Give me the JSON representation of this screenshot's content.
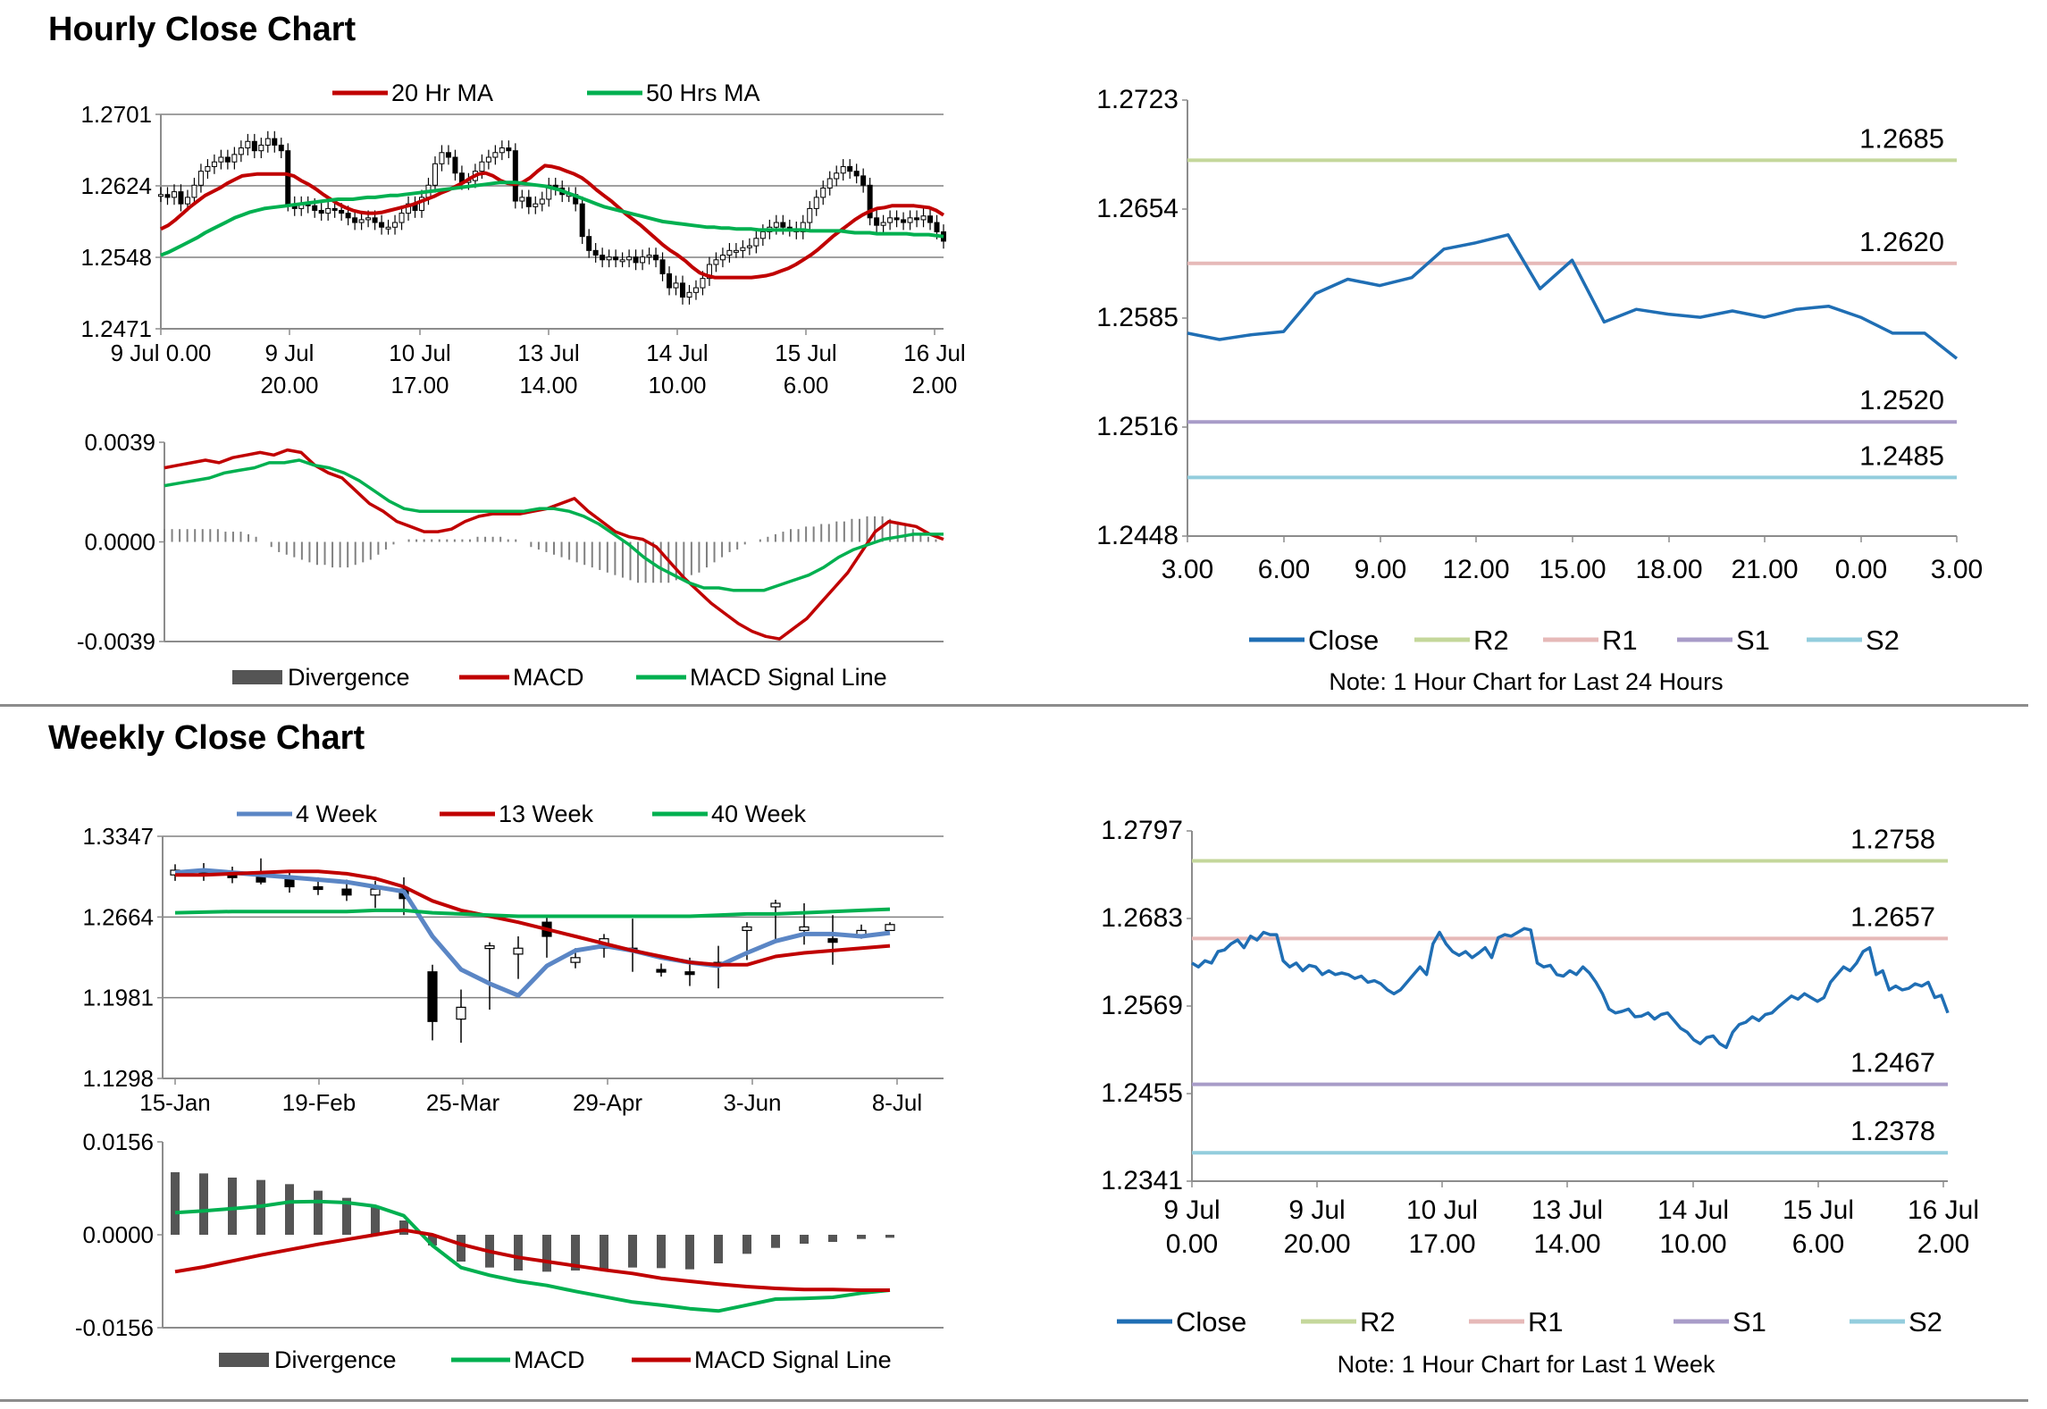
{
  "sections": {
    "hourly_title": "Hourly Close Chart",
    "weekly_title": "Weekly Close Chart"
  },
  "colors": {
    "red": "#c00000",
    "green": "#00b050",
    "blue": "#1f6eb4",
    "steel": "#5b86c5",
    "r2": "#c4d79b",
    "r1": "#e6b9b8",
    "s1": "#a89cc8",
    "s2": "#93cddd",
    "div": "#555555"
  },
  "chart_data": [
    {
      "id": "hourly_price",
      "type": "candlestick",
      "legend": [
        "20 Hr MA",
        "50 Hrs MA"
      ],
      "y_ticks": [
        "1.2701",
        "1.2624",
        "1.2548",
        "1.2471"
      ],
      "ylim": [
        1.2471,
        1.2701
      ],
      "x_ticks": [
        [
          "9 Jul 0.00",
          ""
        ],
        [
          "9 Jul",
          "20.00"
        ],
        [
          "10 Jul",
          "17.00"
        ],
        [
          "13 Jul",
          "14.00"
        ],
        [
          "14 Jul",
          "10.00"
        ],
        [
          "15 Jul",
          "6.00"
        ],
        [
          "16 Jul",
          "2.00"
        ]
      ],
      "close": [
        1.2615,
        1.2612,
        1.2618,
        1.2605,
        1.2612,
        1.2625,
        1.264,
        1.2645,
        1.265,
        1.2655,
        1.265,
        1.2658,
        1.2665,
        1.2672,
        1.2662,
        1.2668,
        1.2675,
        1.2668,
        1.2662,
        1.2605,
        1.26,
        1.2605,
        1.2603,
        1.2598,
        1.2595,
        1.26,
        1.2598,
        1.2595,
        1.259,
        1.2585,
        1.2588,
        1.259,
        1.2585,
        1.258,
        1.258,
        1.2585,
        1.2595,
        1.2605,
        1.2598,
        1.2612,
        1.2625,
        1.2648,
        1.266,
        1.2655,
        1.2638,
        1.2628,
        1.263,
        1.264,
        1.265,
        1.2655,
        1.266,
        1.2665,
        1.2662,
        1.2608,
        1.2612,
        1.2602,
        1.2605,
        1.261,
        1.2625,
        1.2622,
        1.2615,
        1.2615,
        1.2605,
        1.257,
        1.2555,
        1.255,
        1.2545,
        1.2548,
        1.2545,
        1.2545,
        1.2548,
        1.2542,
        1.2548,
        1.255,
        1.2545,
        1.253,
        1.2515,
        1.252,
        1.2505,
        1.251,
        1.2515,
        1.2525,
        1.254,
        1.2545,
        1.255,
        1.2555,
        1.2555,
        1.2558,
        1.256,
        1.2568,
        1.2575,
        1.258,
        1.2585,
        1.258,
        1.2578,
        1.2575,
        1.2585,
        1.26,
        1.2612,
        1.2622,
        1.2632,
        1.2638,
        1.2645,
        1.264,
        1.2635,
        1.2625,
        1.259,
        1.2582,
        1.2585,
        1.259,
        1.2588,
        1.2585,
        1.259,
        1.2588,
        1.2592,
        1.2585,
        1.2575,
        1.2565
      ],
      "ma20": [
        1.2578,
        1.2582,
        1.2588,
        1.2595,
        1.2602,
        1.2608,
        1.2614,
        1.2618,
        1.2622,
        1.2627,
        1.2631,
        1.2635,
        1.2636,
        1.2637,
        1.2637,
        1.2637,
        1.2637,
        1.2637,
        1.2635,
        1.263,
        1.2626,
        1.2621,
        1.2615,
        1.261,
        1.2605,
        1.2601,
        1.2598,
        1.2596,
        1.2595,
        1.2595,
        1.2596,
        1.2598,
        1.26,
        1.2602,
        1.2604,
        1.2607,
        1.261,
        1.2613,
        1.2617,
        1.262,
        1.2624,
        1.2628,
        1.2633,
        1.2637,
        1.2638,
        1.2635,
        1.263,
        1.2627,
        1.2626,
        1.2628,
        1.2633,
        1.264,
        1.2646,
        1.2645,
        1.2643,
        1.264,
        1.2637,
        1.2633,
        1.2627,
        1.262,
        1.2614,
        1.2608,
        1.2601,
        1.2594,
        1.2588,
        1.2582,
        1.2575,
        1.2568,
        1.2561,
        1.2555,
        1.255,
        1.2544,
        1.2537,
        1.2531,
        1.2528,
        1.2526,
        1.2526,
        1.2526,
        1.2526,
        1.2526,
        1.2526,
        1.2527,
        1.2528,
        1.253,
        1.2533,
        1.2536,
        1.254,
        1.2545,
        1.255,
        1.2556,
        1.2563,
        1.257,
        1.2576,
        1.2582,
        1.2588,
        1.2593,
        1.2597,
        1.26,
        1.2601,
        1.2603,
        1.2603,
        1.2603,
        1.2603,
        1.2602,
        1.2601,
        1.2598,
        1.2593
      ],
      "ma50": [
        1.255,
        1.2553,
        1.2557,
        1.2561,
        1.2565,
        1.2569,
        1.2574,
        1.2578,
        1.2582,
        1.2586,
        1.259,
        1.2593,
        1.2596,
        1.2598,
        1.26,
        1.2601,
        1.2602,
        1.2603,
        1.2604,
        1.2605,
        1.2606,
        1.2607,
        1.2608,
        1.2609,
        1.261,
        1.261,
        1.261,
        1.2611,
        1.2612,
        1.2612,
        1.2613,
        1.2614,
        1.2614,
        1.2615,
        1.2616,
        1.2617,
        1.2618,
        1.2619,
        1.262,
        1.2621,
        1.2622,
        1.2623,
        1.2624,
        1.2625,
        1.2626,
        1.2627,
        1.2628,
        1.2628,
        1.2628,
        1.2627,
        1.2626,
        1.2625,
        1.2624,
        1.2622,
        1.262,
        1.2617,
        1.2614,
        1.2611,
        1.2608,
        1.2605,
        1.2602,
        1.26,
        1.2598,
        1.2596,
        1.2594,
        1.2592,
        1.259,
        1.2588,
        1.2586,
        1.2585,
        1.2584,
        1.2583,
        1.2582,
        1.2581,
        1.258,
        1.258,
        1.2579,
        1.2579,
        1.2578,
        1.2578,
        1.2578,
        1.2577,
        1.2577,
        1.2577,
        1.2577,
        1.2577,
        1.2577,
        1.2577,
        1.2576,
        1.2576,
        1.2576,
        1.2576,
        1.2576,
        1.2575,
        1.2574,
        1.2574,
        1.2574,
        1.2573,
        1.2573,
        1.2573,
        1.2573,
        1.2573,
        1.2572,
        1.2572,
        1.2572,
        1.2571,
        1.257
      ]
    },
    {
      "id": "hourly_macd",
      "type": "macd",
      "y_ticks": [
        "0.0039",
        "0.0000",
        "-0.0039"
      ],
      "ylim": [
        -0.0039,
        0.0039
      ],
      "legend": [
        "Divergence",
        "MACD",
        "MACD Signal Line"
      ],
      "macd": [
        0.0029,
        0.003,
        0.0031,
        0.0032,
        0.0031,
        0.0033,
        0.0034,
        0.0035,
        0.0034,
        0.0036,
        0.0035,
        0.003,
        0.0027,
        0.0025,
        0.002,
        0.0015,
        0.0012,
        0.0008,
        0.0006,
        0.0004,
        0.0004,
        0.0005,
        0.0008,
        0.001,
        0.0011,
        0.0011,
        0.0011,
        0.0012,
        0.0013,
        0.0015,
        0.0017,
        0.0012,
        0.0008,
        0.0004,
        0.0002,
        0.0001,
        -0.0002,
        -0.0008,
        -0.0014,
        -0.0019,
        -0.0024,
        -0.0028,
        -0.0032,
        -0.0035,
        -0.0037,
        -0.0038,
        -0.0034,
        -0.003,
        -0.0024,
        -0.0018,
        -0.0012,
        -0.0004,
        0.0004,
        0.0008,
        0.0007,
        0.0006,
        0.0003,
        0.0001
      ],
      "signal": [
        0.0022,
        0.0023,
        0.0024,
        0.0025,
        0.0027,
        0.0028,
        0.0029,
        0.0031,
        0.0031,
        0.0032,
        0.003,
        0.0029,
        0.0027,
        0.0024,
        0.002,
        0.0016,
        0.0013,
        0.0012,
        0.0012,
        0.0012,
        0.0012,
        0.0012,
        0.0012,
        0.0012,
        0.0012,
        0.0013,
        0.0013,
        0.0012,
        0.001,
        0.0007,
        0.0003,
        -0.0001,
        -0.0006,
        -0.001,
        -0.0013,
        -0.0016,
        -0.0018,
        -0.0018,
        -0.0019,
        -0.0019,
        -0.0019,
        -0.0017,
        -0.0015,
        -0.0013,
        -0.001,
        -0.0006,
        -0.0003,
        -0.0001,
        0.0001,
        0.0002,
        0.0003,
        0.0003,
        0.0003
      ],
      "divergence": [
        0.0005,
        0.0005,
        0.0005,
        0.0005,
        0.0005,
        0.0005,
        0.0005,
        0.0005,
        0.0004,
        0.0004,
        0.0004,
        0.0003,
        0.0002,
        0.0,
        -0.0002,
        -0.0004,
        -0.0005,
        -0.0006,
        -0.0007,
        -0.0008,
        -0.0009,
        -0.0009,
        -0.001,
        -0.001,
        -0.001,
        -0.0009,
        -0.0008,
        -0.0007,
        -0.0005,
        -0.0003,
        -0.0001,
        0.0,
        0.0001,
        0.0001,
        0.0001,
        0.0001,
        0.0001,
        0.0001,
        0.0001,
        0.0001,
        0.0001,
        0.0002,
        0.0002,
        0.0002,
        0.0002,
        0.0001,
        0.0001,
        0.0,
        -0.0002,
        -0.0003,
        -0.0004,
        -0.0005,
        -0.0006,
        -0.0007,
        -0.0008,
        -0.0009,
        -0.001,
        -0.0011,
        -0.0012,
        -0.0013,
        -0.0014,
        -0.0015,
        -0.0016,
        -0.0016,
        -0.0016,
        -0.0016,
        -0.0016,
        -0.0015,
        -0.0014,
        -0.0013,
        -0.0012,
        -0.001,
        -0.0008,
        -0.0006,
        -0.0004,
        -0.0003,
        -0.0001,
        0.0,
        0.0001,
        0.0002,
        0.0003,
        0.0004,
        0.0005,
        0.0005,
        0.0006,
        0.0006,
        0.0007,
        0.0007,
        0.0008,
        0.0008,
        0.0009,
        0.0009,
        0.001,
        0.001,
        0.001,
        0.0009,
        0.0008,
        0.0007,
        0.0005,
        0.0003,
        0.0002,
        0.0001,
        0.0
      ]
    },
    {
      "id": "hourly_24h",
      "type": "line",
      "note": "Note: 1 Hour Chart for Last 24 Hours",
      "legend": [
        "Close",
        "R2",
        "R1",
        "S1",
        "S2"
      ],
      "y_ticks": [
        "1.2723",
        "1.2654",
        "1.2585",
        "1.2516",
        "1.2448"
      ],
      "ylim": [
        1.2448,
        1.2723
      ],
      "x_ticks": [
        "3.00",
        "6.00",
        "9.00",
        "12.00",
        "15.00",
        "18.00",
        "21.00",
        "0.00",
        "3.00"
      ],
      "close": [
        1.2576,
        1.2572,
        1.2575,
        1.2577,
        1.2601,
        1.261,
        1.2606,
        1.2611,
        1.2629,
        1.2633,
        1.2638,
        1.2604,
        1.2622,
        1.2583,
        1.2591,
        1.2588,
        1.2586,
        1.259,
        1.2586,
        1.2591,
        1.2593,
        1.2586,
        1.2576,
        1.2576,
        1.256
      ],
      "levels": {
        "R2": "1.2685",
        "R1": "1.2620",
        "S1": "1.2520",
        "S2": "1.2485"
      }
    },
    {
      "id": "weekly_price",
      "type": "candlestick",
      "legend": [
        "4 Week",
        "13 Week",
        "40 Week"
      ],
      "y_ticks": [
        "1.3347",
        "1.2664",
        "1.1981",
        "1.1298"
      ],
      "ylim": [
        1.1298,
        1.3347
      ],
      "x_ticks": [
        "15-Jan",
        "19-Feb",
        "25-Mar",
        "29-Apr",
        "3-Jun",
        "8-Jul"
      ],
      "open": [
        1.302,
        1.306,
        1.302,
        1.3,
        1.298,
        1.292,
        1.29,
        1.285,
        1.29,
        1.22,
        1.18,
        1.24,
        1.235,
        1.262,
        1.228,
        1.24,
        1.24,
        1.222,
        1.22,
        1.225,
        1.255,
        1.275,
        1.255,
        1.248,
        1.25,
        1.255
      ],
      "close": [
        1.306,
        1.302,
        1.3,
        1.296,
        1.292,
        1.29,
        1.285,
        1.29,
        1.282,
        1.178,
        1.19,
        1.242,
        1.24,
        1.25,
        1.232,
        1.248,
        1.238,
        1.22,
        1.218,
        1.228,
        1.258,
        1.278,
        1.258,
        1.245,
        1.255,
        1.26
      ],
      "high": [
        1.311,
        1.312,
        1.309,
        1.316,
        1.305,
        1.3,
        1.298,
        1.297,
        1.3,
        1.226,
        1.205,
        1.245,
        1.25,
        1.267,
        1.24,
        1.252,
        1.265,
        1.227,
        1.232,
        1.242,
        1.262,
        1.281,
        1.278,
        1.268,
        1.26,
        1.262
      ],
      "low": [
        1.297,
        1.297,
        1.295,
        1.294,
        1.287,
        1.285,
        1.28,
        1.274,
        1.268,
        1.162,
        1.16,
        1.188,
        1.214,
        1.232,
        1.223,
        1.232,
        1.22,
        1.216,
        1.208,
        1.206,
        1.23,
        1.245,
        1.243,
        1.226,
        1.248,
        1.255
      ],
      "w4": [
        1.304,
        1.306,
        1.304,
        1.302,
        1.3,
        1.298,
        1.296,
        1.292,
        1.288,
        1.25,
        1.222,
        1.21,
        1.2,
        1.225,
        1.238,
        1.242,
        1.238,
        1.232,
        1.228,
        1.225,
        1.236,
        1.246,
        1.252,
        1.252,
        1.25,
        1.253
      ],
      "w13": [
        1.302,
        1.302,
        1.303,
        1.304,
        1.305,
        1.305,
        1.303,
        1.299,
        1.292,
        1.28,
        1.272,
        1.267,
        1.262,
        1.256,
        1.25,
        1.244,
        1.238,
        1.233,
        1.228,
        1.226,
        1.226,
        1.233,
        1.236,
        1.238,
        1.24,
        1.242
      ],
      "w40": [
        1.27,
        1.2705,
        1.271,
        1.271,
        1.271,
        1.271,
        1.271,
        1.272,
        1.272,
        1.27,
        1.269,
        1.268,
        1.267,
        1.267,
        1.267,
        1.267,
        1.267,
        1.267,
        1.267,
        1.268,
        1.269,
        1.269,
        1.27,
        1.271,
        1.272,
        1.273
      ]
    },
    {
      "id": "weekly_macd",
      "type": "macd",
      "y_ticks": [
        "0.0156",
        "0.0000",
        "-0.0156"
      ],
      "ylim": [
        -0.0156,
        0.0156
      ],
      "legend": [
        "Divergence",
        "MACD",
        "MACD Signal Line"
      ],
      "macd": [
        0.0037,
        0.004,
        0.0044,
        0.0048,
        0.0055,
        0.0056,
        0.0054,
        0.0048,
        0.0032,
        -0.0018,
        -0.0055,
        -0.0068,
        -0.0078,
        -0.0085,
        -0.0095,
        -0.0104,
        -0.0113,
        -0.0118,
        -0.0124,
        -0.0128,
        -0.0118,
        -0.0108,
        -0.0107,
        -0.0105,
        -0.0098,
        -0.0093
      ],
      "signal": [
        -0.0062,
        -0.0054,
        -0.0044,
        -0.0034,
        -0.0025,
        -0.0016,
        -0.0008,
        0.0,
        0.0008,
        0.0,
        -0.0016,
        -0.0028,
        -0.0038,
        -0.0045,
        -0.0052,
        -0.0059,
        -0.0065,
        -0.0073,
        -0.0078,
        -0.0083,
        -0.0087,
        -0.009,
        -0.0092,
        -0.0092,
        -0.0093,
        -0.0093
      ],
      "divergence": [
        0.0105,
        0.0103,
        0.0096,
        0.0092,
        0.0085,
        0.0074,
        0.0062,
        0.0048,
        0.0024,
        -0.0018,
        -0.0045,
        -0.0055,
        -0.006,
        -0.0062,
        -0.006,
        -0.0058,
        -0.0055,
        -0.0056,
        -0.0058,
        -0.0048,
        -0.0032,
        -0.0022,
        -0.0015,
        -0.0012,
        -0.0007,
        -0.0005
      ]
    },
    {
      "id": "weekly_1w",
      "type": "line",
      "note": "Note: 1 Hour Chart for Last 1 Week",
      "legend": [
        "Close",
        "R2",
        "R1",
        "S1",
        "S2"
      ],
      "y_ticks": [
        "1.2797",
        "1.2683",
        "1.2569",
        "1.2455",
        "1.2341"
      ],
      "ylim": [
        1.2341,
        1.2797
      ],
      "x_ticks": [
        [
          "9 Jul",
          "0.00"
        ],
        [
          "9 Jul",
          "20.00"
        ],
        [
          "10 Jul",
          "17.00"
        ],
        [
          "13 Jul",
          "14.00"
        ],
        [
          "14 Jul",
          "10.00"
        ],
        [
          "15 Jul",
          "6.00"
        ],
        [
          "16 Jul",
          "2.00"
        ]
      ],
      "close": [
        1.2625,
        1.262,
        1.2628,
        1.2625,
        1.264,
        1.2642,
        1.265,
        1.2655,
        1.2645,
        1.266,
        1.2655,
        1.2665,
        1.2662,
        1.2662,
        1.2628,
        1.262,
        1.2625,
        1.2615,
        1.2622,
        1.262,
        1.261,
        1.2615,
        1.261,
        1.2612,
        1.261,
        1.2605,
        1.2608,
        1.26,
        1.2602,
        1.2598,
        1.259,
        1.2585,
        1.259,
        1.26,
        1.261,
        1.262,
        1.261,
        1.265,
        1.2665,
        1.265,
        1.264,
        1.2635,
        1.264,
        1.2632,
        1.2638,
        1.2645,
        1.2632,
        1.2658,
        1.2662,
        1.266,
        1.2665,
        1.267,
        1.2668,
        1.2625,
        1.262,
        1.2622,
        1.261,
        1.2608,
        1.2615,
        1.261,
        1.262,
        1.2612,
        1.26,
        1.2585,
        1.2565,
        1.256,
        1.2562,
        1.2565,
        1.2555,
        1.2556,
        1.256,
        1.2552,
        1.2558,
        1.256,
        1.255,
        1.254,
        1.2535,
        1.2525,
        1.252,
        1.2528,
        1.253,
        1.252,
        1.2515,
        1.2535,
        1.2545,
        1.2548,
        1.2555,
        1.255,
        1.2558,
        1.256,
        1.2568,
        1.2575,
        1.2582,
        1.2578,
        1.2585,
        1.258,
        1.2575,
        1.258,
        1.26,
        1.261,
        1.262,
        1.2615,
        1.2625,
        1.264,
        1.2645,
        1.261,
        1.2615,
        1.259,
        1.2595,
        1.259,
        1.2592,
        1.2598,
        1.2595,
        1.26,
        1.258,
        1.2583,
        1.256
      ],
      "levels": {
        "R2": "1.2758",
        "R1": "1.2657",
        "S1": "1.2467",
        "S2": "1.2378"
      }
    }
  ]
}
